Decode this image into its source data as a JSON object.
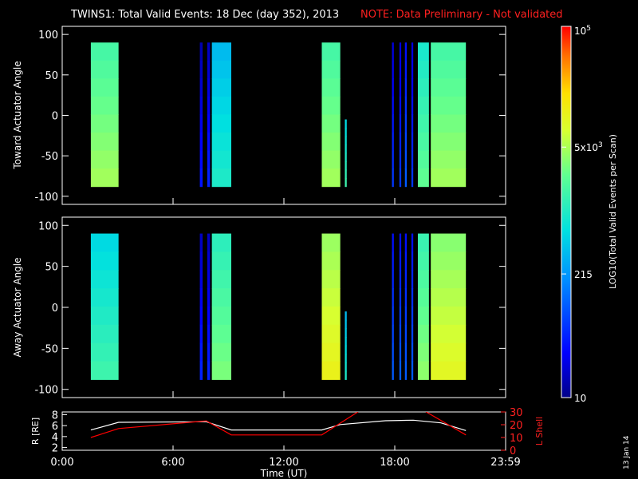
{
  "header": {
    "title": "TWINS1: Total Valid Events: 18 Dec (day 352), 2013",
    "note": "NOTE: Data Preliminary - Not validated"
  },
  "colorbar": {
    "label": "LOG10(Total Valid Events per Scan)",
    "ticks": [
      "10",
      "215",
      "5x10^3",
      "10^5"
    ],
    "tick_display": [
      "10",
      "215",
      "5x10",
      "10"
    ],
    "tick_sup": [
      "",
      "",
      "3",
      "5"
    ]
  },
  "panels": {
    "top_ylabel": "Toward Actuator Angle",
    "bottom_ylabel": "Away Actuator Angle",
    "line_ylabel_left": "R [RE]",
    "line_ylabel_right": "L Shell",
    "xlabel": "Time (UT)",
    "date_stamp": "13 Jan 14"
  },
  "chart_data": [
    {
      "type": "heatmap",
      "title": "TWINS1: Total Valid Events: 18 Dec (day 352), 2013",
      "ylabel": "Toward Actuator Angle",
      "xlim": [
        0,
        24
      ],
      "ylim": [
        -110,
        110
      ],
      "yticks": [
        "100",
        "50",
        "0",
        "-50",
        "-100"
      ],
      "color_scale": "log",
      "value_range": [
        10,
        100000
      ],
      "blocks": [
        {
          "x0": 1.55,
          "x1": 3.05,
          "y0": -88,
          "y1": 90,
          "level": 0.62
        },
        {
          "x0": 7.45,
          "x1": 7.6,
          "y0": -88,
          "y1": 90,
          "level": 0.1
        },
        {
          "x0": 7.85,
          "x1": 8.0,
          "y0": -88,
          "y1": 90,
          "level": 0.12
        },
        {
          "x0": 8.1,
          "x1": 9.15,
          "y0": -88,
          "y1": 90,
          "level": 0.45
        },
        {
          "x0": 14.05,
          "x1": 15.05,
          "y0": -88,
          "y1": 90,
          "level": 0.62
        },
        {
          "x0": 15.3,
          "x1": 15.4,
          "y0": -88,
          "y1": -5,
          "level": 0.5
        },
        {
          "x0": 17.85,
          "x1": 17.95,
          "y0": -88,
          "y1": 90,
          "level": 0.15
        },
        {
          "x0": 18.25,
          "x1": 18.35,
          "y0": -88,
          "y1": 90,
          "level": 0.15
        },
        {
          "x0": 18.55,
          "x1": 18.65,
          "y0": -88,
          "y1": 90,
          "level": 0.2
        },
        {
          "x0": 18.9,
          "x1": 19.0,
          "y0": -88,
          "y1": 90,
          "level": 0.15
        },
        {
          "x0": 19.25,
          "x1": 19.85,
          "y0": -88,
          "y1": 90,
          "level": 0.55
        },
        {
          "x0": 19.95,
          "x1": 21.85,
          "y0": -88,
          "y1": 90,
          "level": 0.62
        }
      ]
    },
    {
      "type": "heatmap",
      "ylabel": "Away Actuator Angle",
      "xlim": [
        0,
        24
      ],
      "ylim": [
        -110,
        110
      ],
      "yticks": [
        "100",
        "50",
        "0",
        "-50",
        "-100"
      ],
      "color_scale": "log",
      "value_range": [
        10,
        100000
      ],
      "blocks": [
        {
          "x0": 1.55,
          "x1": 3.05,
          "y0": -88,
          "y1": 90,
          "level": 0.5
        },
        {
          "x0": 7.45,
          "x1": 7.6,
          "y0": -88,
          "y1": 90,
          "level": 0.12
        },
        {
          "x0": 7.85,
          "x1": 8.0,
          "y0": -88,
          "y1": 90,
          "level": 0.12
        },
        {
          "x0": 8.1,
          "x1": 9.15,
          "y0": -88,
          "y1": 90,
          "level": 0.58
        },
        {
          "x0": 14.05,
          "x1": 15.05,
          "y0": -88,
          "y1": 90,
          "level": 0.72
        },
        {
          "x0": 15.3,
          "x1": 15.4,
          "y0": -88,
          "y1": -5,
          "level": 0.45
        },
        {
          "x0": 17.85,
          "x1": 17.95,
          "y0": -88,
          "y1": 90,
          "level": 0.2
        },
        {
          "x0": 18.25,
          "x1": 18.35,
          "y0": -88,
          "y1": 90,
          "level": 0.2
        },
        {
          "x0": 18.55,
          "x1": 18.65,
          "y0": -88,
          "y1": 90,
          "level": 0.2
        },
        {
          "x0": 18.9,
          "x1": 19.0,
          "y0": -88,
          "y1": 90,
          "level": 0.2
        },
        {
          "x0": 19.25,
          "x1": 19.85,
          "y0": -88,
          "y1": 90,
          "level": 0.6
        },
        {
          "x0": 19.95,
          "x1": 21.85,
          "y0": -88,
          "y1": 90,
          "level": 0.7
        }
      ]
    },
    {
      "type": "line",
      "xlabel": "Time (UT)",
      "xlim": [
        0,
        24
      ],
      "xticks": [
        "0:00",
        "6:00",
        "12:00",
        "18:00",
        "23:59"
      ],
      "ylim_left": [
        1.5,
        8.5
      ],
      "yticks_left": [
        "8",
        "6",
        "4",
        "2"
      ],
      "ylim_right": [
        0,
        30
      ],
      "yticks_right": [
        "30",
        "20",
        "10",
        "0"
      ],
      "series": [
        {
          "color": "#ffffff",
          "axis": "left",
          "x": [
            1.55,
            3.05,
            7.8,
            9.15,
            14.05,
            15.05,
            17.5,
            19.0,
            20.5,
            21.85
          ],
          "y": [
            5.2,
            6.6,
            6.7,
            5.2,
            5.2,
            6.2,
            6.9,
            7.0,
            6.5,
            5.1
          ]
        },
        {
          "color": "#ff0000",
          "axis": "right",
          "x": [
            1.55,
            3.05,
            7.8,
            9.15,
            14.05,
            16.0,
            16.1
          ],
          "y": [
            10,
            17,
            23,
            12,
            12,
            30,
            33
          ]
        },
        {
          "color": "#ff0000",
          "axis": "right",
          "x": [
            19.6,
            19.7,
            21.85
          ],
          "y": [
            33,
            30,
            12
          ]
        }
      ]
    }
  ]
}
